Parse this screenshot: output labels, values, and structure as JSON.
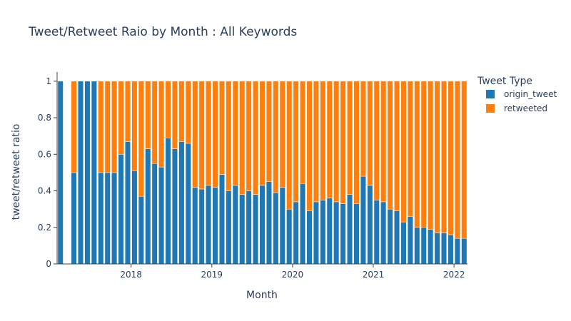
{
  "chart_data": {
    "type": "bar",
    "stacked": true,
    "title": "Tweet/Retweet Raio by Month : All Keywords",
    "xlabel": "Month",
    "ylabel": "tweet/retweet ratio",
    "ylim": [
      0,
      1.05
    ],
    "yticks": [
      0,
      0.2,
      0.4,
      0.6,
      0.8,
      1
    ],
    "ytick_labels": [
      "0",
      "0.2",
      "0.4",
      "0.6",
      "0.8",
      "1"
    ],
    "xticks": [
      "2018",
      "2019",
      "2020",
      "2021",
      "2022"
    ],
    "x_start": "2017-02",
    "legend": {
      "title": "Tweet Type",
      "placement": "top-right"
    },
    "colors": {
      "origin_tweet": "#1f77b4",
      "retweeted": "#ff7f0e",
      "text": "#2a3f5f"
    },
    "series": [
      {
        "name": "origin_tweet",
        "values": [
          1,
          null,
          0.5,
          1,
          1,
          1,
          0.5,
          0.5,
          0.5,
          0.6,
          0.67,
          0.51,
          0.37,
          0.63,
          0.55,
          0.53,
          0.69,
          0.63,
          0.67,
          0.66,
          0.42,
          0.41,
          0.43,
          0.42,
          0.49,
          0.4,
          0.43,
          0.38,
          0.4,
          0.38,
          0.43,
          0.45,
          0.39,
          0.42,
          0.3,
          0.34,
          0.44,
          0.29,
          0.34,
          0.35,
          0.36,
          0.34,
          0.33,
          0.38,
          0.33,
          0.48,
          0.43,
          0.35,
          0.34,
          0.3,
          0.29,
          0.23,
          0.26,
          0.2,
          0.2,
          0.19,
          0.17,
          0.17,
          0.16,
          0.14,
          0.14
        ]
      },
      {
        "name": "retweeted",
        "values": [
          0,
          null,
          0.5,
          0,
          0,
          0,
          0.5,
          0.5,
          0.5,
          0.4,
          0.33,
          0.49,
          0.63,
          0.37,
          0.45,
          0.47,
          0.31,
          0.37,
          0.33,
          0.34,
          0.58,
          0.59,
          0.57,
          0.58,
          0.51,
          0.6,
          0.57,
          0.62,
          0.6,
          0.62,
          0.57,
          0.55,
          0.61,
          0.58,
          0.7,
          0.66,
          0.56,
          0.71,
          0.66,
          0.65,
          0.64,
          0.66,
          0.67,
          0.62,
          0.67,
          0.52,
          0.57,
          0.65,
          0.66,
          0.7,
          0.71,
          0.77,
          0.74,
          0.8,
          0.8,
          0.81,
          0.83,
          0.83,
          0.84,
          0.86,
          0.86
        ]
      }
    ]
  }
}
